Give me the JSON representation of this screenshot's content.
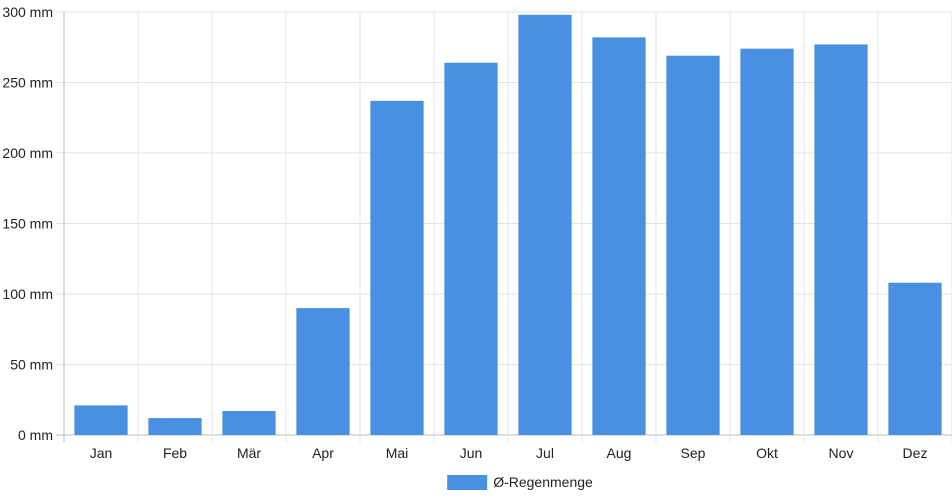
{
  "chart_data": {
    "type": "bar",
    "categories": [
      "Jan",
      "Feb",
      "Mär",
      "Apr",
      "Mai",
      "Jun",
      "Jul",
      "Aug",
      "Sep",
      "Okt",
      "Nov",
      "Dez"
    ],
    "series": [
      {
        "name": "Ø-Regenmenge",
        "values": [
          21,
          12,
          17,
          90,
          237,
          264,
          298,
          282,
          269,
          274,
          277,
          108
        ],
        "color": "#4a90e2"
      }
    ],
    "yticks": [
      "0 mm",
      "50 mm",
      "100 mm",
      "150 mm",
      "200 mm",
      "250 mm",
      "300 mm"
    ],
    "ylim": [
      0,
      300
    ],
    "unit": "mm",
    "grid": true,
    "legend_position": "bottom-center"
  }
}
